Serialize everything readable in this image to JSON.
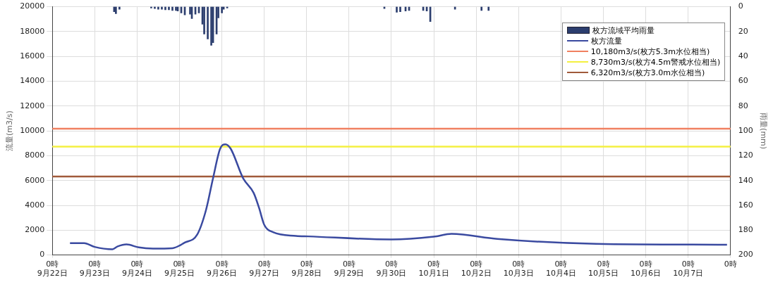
{
  "chart_data": {
    "type": "line",
    "ylabel": "流量(m3/s)",
    "y2label": "雨量(mm)",
    "xlim": [
      "--09-22T00:00",
      "--10-08T00:00"
    ],
    "xticks": [
      {
        "value": "--09-22",
        "label": "0時\n9月22日"
      },
      {
        "value": "--09-23",
        "label": "0時\n9月23日"
      },
      {
        "value": "--09-24",
        "label": "0時\n9月24日"
      },
      {
        "value": "--09-25",
        "label": "0時\n9月25日"
      },
      {
        "value": "--09-26",
        "label": "0時\n9月26日"
      },
      {
        "value": "--09-27",
        "label": "0時\n9月27日"
      },
      {
        "value": "--09-28",
        "label": "0時\n9月28日"
      },
      {
        "value": "--09-29",
        "label": "0時\n9月29日"
      },
      {
        "value": "--09-30",
        "label": "0時\n9月30日"
      },
      {
        "value": "--10-01",
        "label": "0時\n10月1日"
      },
      {
        "value": "--10-02",
        "label": "0時\n10月2日"
      },
      {
        "value": "--10-03",
        "label": "0時\n10月3日"
      },
      {
        "value": "--10-04",
        "label": "0時\n10月4日"
      },
      {
        "value": "--10-05",
        "label": "0時\n10月5日"
      },
      {
        "value": "--10-06",
        "label": "0時\n10月6日"
      },
      {
        "value": "--10-07",
        "label": "0時\n10月7日"
      },
      {
        "value": "--10-08",
        "label": "0時"
      }
    ],
    "ylim": [
      0,
      20000
    ],
    "yticks": [
      0,
      2000,
      4000,
      6000,
      8000,
      10000,
      12000,
      14000,
      16000,
      18000,
      20000
    ],
    "y2lim": [
      200,
      0
    ],
    "y2ticks": [
      0,
      20,
      40,
      60,
      80,
      100,
      120,
      140,
      160,
      180,
      200
    ],
    "grid": true,
    "legend": "top right",
    "marker": "none",
    "line_style": "solid",
    "series": [
      {
        "name": "枚方流域平均雨量",
        "type": "bar",
        "axis": "y2",
        "color": "#2c3e6e",
        "x": [
          "--09-23T11:00",
          "--09-23T12:00",
          "--09-23T14:00",
          "--09-24T08:00",
          "--09-24T10:00",
          "--09-24T12:00",
          "--09-24T14:00",
          "--09-24T16:00",
          "--09-24T18:00",
          "--09-24T20:00",
          "--09-24T22:00",
          "--09-24T23:00",
          "--09-25T01:00",
          "--09-25T03:00",
          "--09-25T06:00",
          "--09-25T07:00",
          "--09-25T09:00",
          "--09-25T11:00",
          "--09-25T13:00",
          "--09-25T14:00",
          "--09-25T16:00",
          "--09-25T18:00",
          "--09-25T19:00",
          "--09-25T21:00",
          "--09-25T22:00",
          "--09-26T00:00",
          "--09-26T01:00",
          "--09-26T03:00",
          "--09-29T20:00",
          "--09-30T03:00",
          "--09-30T05:00",
          "--09-30T08:00",
          "--09-30T10:00",
          "--09-30T18:00",
          "--09-30T20:00",
          "--09-30T22:00",
          "--10-01T12:00",
          "--10-02T03:00",
          "--10-02T07:00"
        ],
        "values": [
          4,
          5.5,
          2,
          1,
          1.5,
          2,
          2,
          2.5,
          2.5,
          3,
          3,
          3.5,
          5,
          6.5,
          6,
          9.5,
          6,
          5,
          14,
          22,
          26,
          31,
          29,
          22,
          9,
          5,
          2,
          1,
          1.5,
          4.5,
          4,
          3.5,
          3,
          3,
          3.5,
          12,
          2,
          3,
          3
        ]
      },
      {
        "name": "枚方流量",
        "color": "#3a4aa0",
        "x": [
          "--09-22T10:00",
          "--09-22T18:00",
          "--09-23T00:00",
          "--09-23T10:00",
          "--09-23T13:00",
          "--09-23T18:00",
          "--09-24T01:00",
          "--09-24T09:00",
          "--09-24T20:00",
          "--09-25T03:00",
          "--09-25T10:00",
          "--09-25T15:00",
          "--09-25T19:00",
          "--09-25T23:00",
          "--09-26T02:00",
          "--09-26T05:00",
          "--09-26T12:00",
          "--09-26T18:00",
          "--09-26T21:00",
          "--09-27T00:00",
          "--09-27T05:00",
          "--09-27T18:00",
          "--09-28T01:00",
          "--09-30T00:00",
          "--10-01T00:00",
          "--10-01T10:00",
          "--10-02T12:00",
          "--10-04T20:00",
          "--10-07T22:00"
        ],
        "values": [
          950,
          950,
          650,
          460,
          690,
          850,
          610,
          520,
          550,
          1000,
          1640,
          3620,
          6190,
          8560,
          8920,
          8560,
          6190,
          5000,
          3820,
          2430,
          1840,
          1540,
          1500,
          1250,
          1480,
          1700,
          1300,
          900,
          830
        ]
      }
    ],
    "ref_lines": [
      {
        "axis": "y",
        "value": 10180,
        "label": "10,180m3/s(枚方5.3m水位相当)",
        "color": "#f08060"
      },
      {
        "axis": "y",
        "value": 8730,
        "label": "8,730m3/s(枚方4.5m警戒水位相当)",
        "color": "#f4f040"
      },
      {
        "axis": "y",
        "value": 6320,
        "label": "6,320m3/s(枚方3.0m水位相当)",
        "color": "#a05a3a"
      }
    ]
  }
}
